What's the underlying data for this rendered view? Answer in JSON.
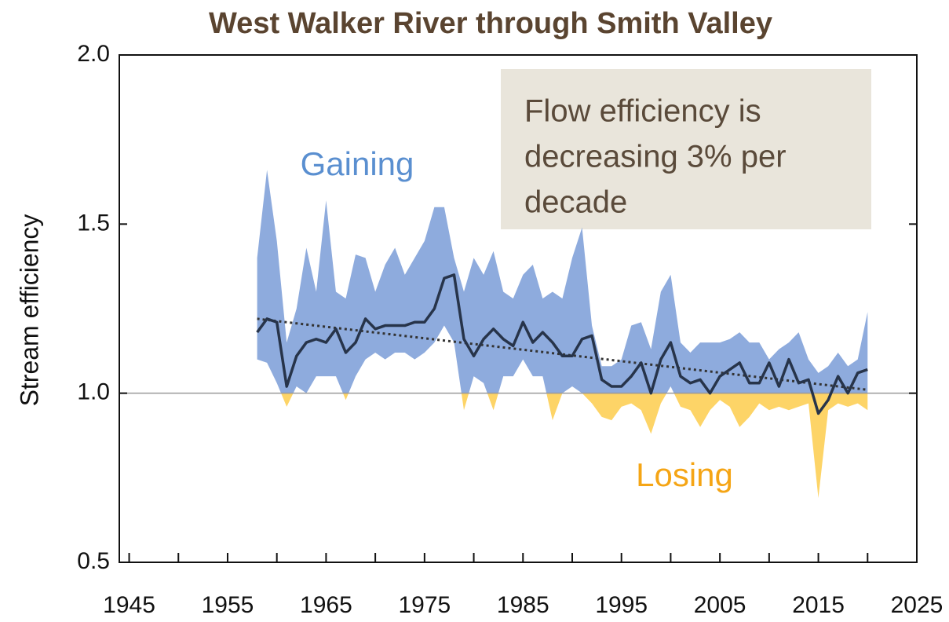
{
  "chart_data": {
    "type": "band-line",
    "title": "West Walker River through Smith Valley",
    "y_label": "Stream efficiency",
    "annotations": {
      "gaining": "Gaining",
      "losing": "Losing",
      "box": [
        "Flow efficiency is",
        "decreasing 3% per",
        "decade"
      ]
    },
    "x": [
      1958,
      1959,
      1960,
      1961,
      1962,
      1963,
      1964,
      1965,
      1966,
      1967,
      1968,
      1969,
      1970,
      1971,
      1972,
      1973,
      1974,
      1975,
      1976,
      1977,
      1978,
      1979,
      1980,
      1981,
      1982,
      1983,
      1984,
      1985,
      1986,
      1987,
      1988,
      1989,
      1990,
      1991,
      1992,
      1993,
      1994,
      1995,
      1996,
      1997,
      1998,
      1999,
      2000,
      2001,
      2002,
      2003,
      2004,
      2005,
      2006,
      2007,
      2008,
      2009,
      2010,
      2011,
      2012,
      2013,
      2014,
      2015,
      2016,
      2017,
      2018,
      2019,
      2020
    ],
    "values": [
      1.18,
      1.22,
      1.21,
      1.02,
      1.11,
      1.15,
      1.16,
      1.15,
      1.19,
      1.12,
      1.15,
      1.22,
      1.19,
      1.2,
      1.2,
      1.2,
      1.21,
      1.21,
      1.25,
      1.34,
      1.35,
      1.16,
      1.11,
      1.16,
      1.19,
      1.16,
      1.14,
      1.21,
      1.15,
      1.18,
      1.15,
      1.11,
      1.11,
      1.16,
      1.17,
      1.04,
      1.02,
      1.02,
      1.05,
      1.09,
      1.0,
      1.1,
      1.15,
      1.05,
      1.03,
      1.04,
      1.0,
      1.05,
      1.07,
      1.09,
      1.03,
      1.03,
      1.09,
      1.02,
      1.1,
      1.03,
      1.04,
      0.94,
      0.98,
      1.05,
      1.0,
      1.06,
      1.07
    ],
    "upper": [
      1.4,
      1.66,
      1.45,
      1.15,
      1.25,
      1.43,
      1.3,
      1.57,
      1.3,
      1.28,
      1.41,
      1.4,
      1.3,
      1.38,
      1.43,
      1.35,
      1.4,
      1.45,
      1.55,
      1.55,
      1.4,
      1.3,
      1.4,
      1.35,
      1.42,
      1.3,
      1.28,
      1.35,
      1.38,
      1.28,
      1.3,
      1.28,
      1.4,
      1.49,
      1.2,
      1.08,
      1.08,
      1.1,
      1.2,
      1.21,
      1.13,
      1.3,
      1.35,
      1.15,
      1.12,
      1.15,
      1.15,
      1.15,
      1.16,
      1.18,
      1.15,
      1.15,
      1.1,
      1.13,
      1.15,
      1.18,
      1.1,
      1.06,
      1.08,
      1.12,
      1.08,
      1.1,
      1.24
    ],
    "lower": [
      1.1,
      1.09,
      1.03,
      0.96,
      1.02,
      1.0,
      1.05,
      1.05,
      1.05,
      0.98,
      1.05,
      1.1,
      1.12,
      1.1,
      1.12,
      1.12,
      1.1,
      1.12,
      1.15,
      1.2,
      1.15,
      0.95,
      1.05,
      1.03,
      0.95,
      1.05,
      1.05,
      1.1,
      1.05,
      1.05,
      0.92,
      1.0,
      1.02,
      1.0,
      0.97,
      0.93,
      0.92,
      0.96,
      0.97,
      0.95,
      0.88,
      0.97,
      1.02,
      0.96,
      0.95,
      0.9,
      0.95,
      0.98,
      0.96,
      0.9,
      0.93,
      0.97,
      0.95,
      0.96,
      0.95,
      0.96,
      0.97,
      0.69,
      0.95,
      0.97,
      0.96,
      0.97,
      0.95
    ],
    "trend": {
      "x": [
        1958,
        2020
      ],
      "values": [
        1.22,
        1.01
      ]
    },
    "reference": 1.0,
    "line_color": "#27344a",
    "gain_color": "#8eabdd",
    "loss_color": "#fdd467",
    "xlim": [
      1944,
      2025
    ],
    "xticks": [
      1945,
      1955,
      1965,
      1975,
      1985,
      1995,
      2005,
      2015,
      2025
    ],
    "x_minor_ticks": [
      1950,
      1960,
      1970,
      1980,
      1990,
      2000,
      2010,
      2020
    ],
    "ylim": [
      0.5,
      2.0
    ],
    "yticks": [
      0.5,
      {
        "value": 1.0,
        "label": "1.0"
      },
      {
        "value": 1.5,
        "label": "1.5"
      },
      {
        "value": 2.0,
        "label": "2.0"
      }
    ]
  }
}
